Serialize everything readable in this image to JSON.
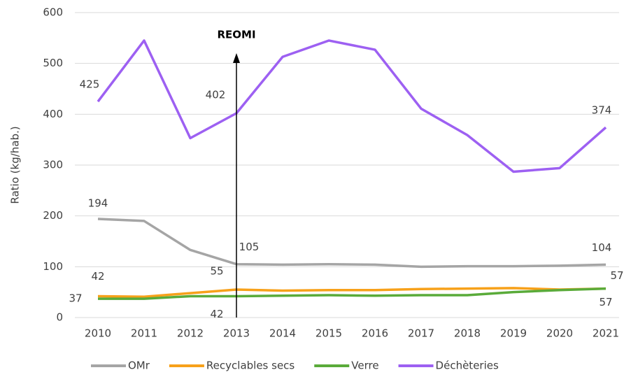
{
  "chart_data": {
    "type": "line",
    "y_label": "Ratio (kg/hab.)",
    "categories": [
      "2010",
      "2011",
      "2012",
      "2013",
      "2014",
      "2015",
      "2016",
      "2017",
      "2018",
      "2019",
      "2020",
      "2021"
    ],
    "ylim": [
      0,
      600
    ],
    "yticks": [
      0,
      100,
      200,
      300,
      400,
      500,
      600
    ],
    "grid": true,
    "legend": "bottom",
    "annotation": {
      "text": "REOMI",
      "at": 3
    },
    "series": [
      {
        "name": "OMr",
        "color": "#a5a5a5",
        "values": [
          194,
          190,
          133,
          105,
          104,
          105,
          104,
          100,
          101,
          101,
          102,
          104
        ],
        "label_indices": [
          0,
          3,
          11
        ]
      },
      {
        "name": "Recyclables secs",
        "color": "#f7a11a",
        "values": [
          42,
          41,
          48,
          55,
          53,
          54,
          54,
          56,
          57,
          58,
          55,
          57
        ],
        "label_indices": [
          0,
          3,
          11
        ]
      },
      {
        "name": "Verre",
        "color": "#5aab3a",
        "values": [
          37,
          37,
          42,
          42,
          43,
          44,
          43,
          44,
          44,
          50,
          54,
          57
        ],
        "label_indices": [
          0,
          3,
          11
        ]
      },
      {
        "name": "Déchèteries",
        "color": "#9d60f2",
        "values": [
          425,
          545,
          353,
          402,
          513,
          545,
          527,
          411,
          359,
          287,
          294,
          374
        ],
        "label_indices": [
          0,
          3,
          11
        ]
      }
    ]
  }
}
